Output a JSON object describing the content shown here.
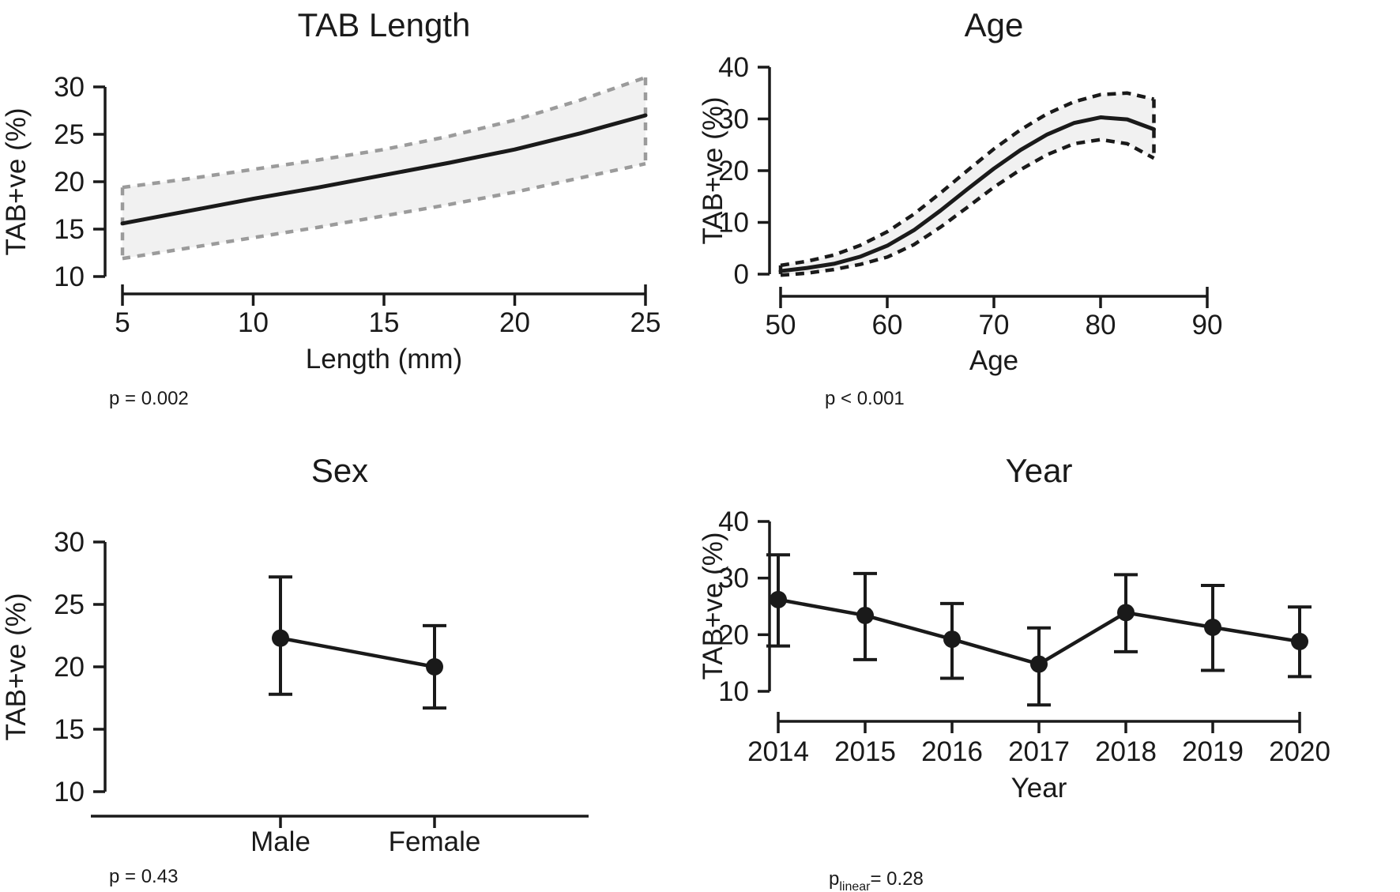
{
  "figure": {
    "background": "#ffffff",
    "text_color": "#1a1a1a",
    "band_fill": "#f1f1f1",
    "gray_dash_color": "#9b9b9b"
  },
  "chart_data": [
    {
      "type": "line",
      "title": "TAB Length",
      "xlabel": "Length (mm)",
      "ylabel": "TAB+ve (%)",
      "p": {
        "text": "p = 0.002"
      },
      "xlim": [
        5,
        25
      ],
      "ylim": [
        10,
        30
      ],
      "xticks": [
        5,
        10,
        15,
        20,
        25
      ],
      "yticks": [
        10,
        15,
        20,
        25,
        30
      ],
      "band_style": "gray-dashed",
      "x": [
        5,
        7.5,
        10,
        12.5,
        15,
        17.5,
        20,
        22.5,
        25
      ],
      "fit": [
        15.6,
        16.9,
        18.2,
        19.4,
        20.7,
        22.0,
        23.4,
        25.1,
        27.0
      ],
      "upper": [
        19.4,
        20.3,
        21.3,
        22.3,
        23.4,
        24.8,
        26.5,
        28.6,
        31.0
      ],
      "lower": [
        11.9,
        13.0,
        14.1,
        15.2,
        16.4,
        17.6,
        18.9,
        20.4,
        21.9
      ]
    },
    {
      "type": "line",
      "title": "Age",
      "xlabel": "Age",
      "ylabel": "TAB+ve (%)",
      "p": {
        "text": "p < 0.001"
      },
      "xlim": [
        50,
        90
      ],
      "ylim": [
        0,
        40
      ],
      "xticks": [
        50,
        60,
        70,
        80,
        90
      ],
      "yticks": [
        0,
        10,
        20,
        30,
        40
      ],
      "band_style": "black-dashed",
      "x": [
        50,
        52.5,
        55,
        57.5,
        60,
        62.5,
        65,
        67.5,
        70,
        72.5,
        75,
        77.5,
        80,
        82.5,
        85
      ],
      "fit": [
        0.6,
        1.2,
        2.0,
        3.4,
        5.5,
        8.5,
        12.3,
        16.4,
        20.4,
        24.0,
        27.0,
        29.2,
        30.3,
        29.9,
        28.0
      ],
      "upper": [
        1.7,
        2.5,
        3.7,
        5.6,
        8.2,
        11.6,
        15.7,
        20.0,
        24.2,
        27.9,
        31.0,
        33.3,
        34.7,
        35.0,
        33.8
      ],
      "lower": [
        -0.2,
        0.2,
        0.9,
        1.9,
        3.3,
        5.7,
        9.1,
        12.9,
        16.8,
        20.2,
        23.1,
        25.2,
        26.0,
        25.2,
        22.4
      ]
    },
    {
      "type": "pointrange",
      "title": "Sex",
      "xlabel": "",
      "ylabel": "TAB+ve (%)",
      "p": {
        "text": "p = 0.43"
      },
      "ylim": [
        10,
        30
      ],
      "yticks": [
        10,
        15,
        20,
        25,
        30
      ],
      "categories": [
        "Male",
        "Female"
      ],
      "estimates": [
        22.3,
        20.0
      ],
      "ci_low": [
        17.8,
        16.7
      ],
      "ci_high": [
        27.2,
        23.3
      ]
    },
    {
      "type": "pointrange",
      "title": "Year",
      "xlabel": "Year",
      "ylabel": "TAB+ve (%)",
      "p": {
        "base": "p",
        "sub": "linear",
        "rest": "= 0.28"
      },
      "ylim": [
        10,
        40
      ],
      "yticks": [
        10,
        20,
        30,
        40
      ],
      "categories": [
        "2014",
        "2015",
        "2016",
        "2017",
        "2018",
        "2019",
        "2020"
      ],
      "estimates": [
        26.2,
        23.4,
        19.2,
        14.8,
        23.9,
        21.3,
        18.8
      ],
      "ci_low": [
        18.0,
        15.6,
        12.3,
        7.6,
        17.0,
        13.7,
        12.6
      ],
      "ci_high": [
        34.1,
        30.8,
        25.5,
        21.2,
        30.6,
        28.7,
        24.9
      ]
    }
  ]
}
